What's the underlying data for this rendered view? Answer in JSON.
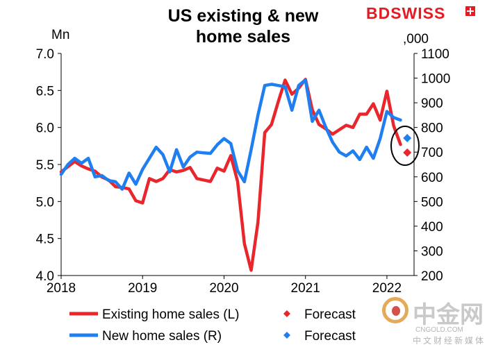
{
  "title_line1": "US existing & new",
  "title_line2": "home sales",
  "brand": {
    "name": "BDSWISS"
  },
  "left_axis_unit": "Mn",
  "right_axis_unit": ",000",
  "watermark": {
    "name": "中金网",
    "url": "CNGOLD.COM",
    "subtitle": "中文财经新媒体"
  },
  "colors": {
    "existing": "#e8262c",
    "new": "#1f7ff0",
    "axis": "#000000"
  },
  "chart_data": {
    "type": "line",
    "x_ticks": [
      "2018",
      "2019",
      "2020",
      "2021",
      "2022"
    ],
    "x_range": [
      "2018-01",
      "2022-05"
    ],
    "left_axis": {
      "label": "Mn",
      "ylim": [
        4.0,
        7.0
      ],
      "ticks": [
        "4.0",
        "4.5",
        "5.0",
        "5.5",
        "6.0",
        "6.5",
        "7.0"
      ]
    },
    "right_axis": {
      "label": ",000",
      "ylim": [
        200,
        1100
      ],
      "ticks": [
        "200",
        "300",
        "400",
        "500",
        "600",
        "700",
        "800",
        "900",
        "1000",
        "1100"
      ]
    },
    "legend": {
      "placement": "bottom"
    },
    "series": [
      {
        "name": "Existing home sales (L)",
        "axis": "left",
        "color": "#e8262c",
        "x": [
          "2018-01",
          "2018-02",
          "2018-03",
          "2018-04",
          "2018-05",
          "2018-06",
          "2018-07",
          "2018-08",
          "2018-09",
          "2018-10",
          "2018-11",
          "2018-12",
          "2019-01",
          "2019-02",
          "2019-03",
          "2019-04",
          "2019-05",
          "2019-06",
          "2019-07",
          "2019-08",
          "2019-09",
          "2019-10",
          "2019-11",
          "2019-12",
          "2020-01",
          "2020-02",
          "2020-03",
          "2020-04",
          "2020-05",
          "2020-06",
          "2020-07",
          "2020-08",
          "2020-09",
          "2020-10",
          "2020-11",
          "2020-12",
          "2021-01",
          "2021-02",
          "2021-03",
          "2021-04",
          "2021-05",
          "2021-06",
          "2021-07",
          "2021-08",
          "2021-09",
          "2021-10",
          "2021-11",
          "2021-12",
          "2022-01",
          "2022-02",
          "2022-03"
        ],
        "y": [
          5.4,
          5.47,
          5.54,
          5.48,
          5.44,
          5.41,
          5.33,
          5.29,
          5.2,
          5.19,
          5.17,
          5.01,
          4.98,
          5.31,
          5.27,
          5.31,
          5.43,
          5.4,
          5.42,
          5.46,
          5.31,
          5.29,
          5.27,
          5.45,
          5.41,
          5.62,
          5.27,
          4.43,
          4.07,
          4.72,
          5.93,
          6.04,
          6.35,
          6.64,
          6.45,
          6.53,
          6.65,
          6.24,
          6.04,
          5.98,
          5.91,
          5.97,
          6.03,
          6.0,
          6.18,
          6.18,
          6.32,
          6.1,
          6.49,
          6.02,
          5.77
        ]
      },
      {
        "name": "New home sales (R)",
        "axis": "right",
        "color": "#1f7ff0",
        "x": [
          "2018-01",
          "2018-02",
          "2018-03",
          "2018-04",
          "2018-05",
          "2018-06",
          "2018-07",
          "2018-08",
          "2018-09",
          "2018-10",
          "2018-11",
          "2018-12",
          "2019-01",
          "2019-02",
          "2019-03",
          "2019-04",
          "2019-05",
          "2019-06",
          "2019-07",
          "2019-08",
          "2019-09",
          "2019-10",
          "2019-11",
          "2019-12",
          "2020-01",
          "2020-02",
          "2020-03",
          "2020-04",
          "2020-05",
          "2020-06",
          "2020-07",
          "2020-08",
          "2020-09",
          "2020-10",
          "2020-11",
          "2020-12",
          "2021-01",
          "2021-02",
          "2021-03",
          "2021-04",
          "2021-05",
          "2021-06",
          "2021-07",
          "2021-08",
          "2021-09",
          "2021-10",
          "2021-11",
          "2021-12",
          "2022-01",
          "2022-02",
          "2022-03"
        ],
        "y": [
          610,
          650,
          675,
          655,
          675,
          600,
          605,
          585,
          580,
          550,
          615,
          570,
          630,
          675,
          720,
          690,
          620,
          710,
          640,
          680,
          700,
          697,
          695,
          730,
          755,
          735,
          625,
          580,
          710,
          850,
          970,
          975,
          970,
          965,
          870,
          970,
          993,
          825,
          870,
          800,
          740,
          700,
          685,
          705,
          670,
          720,
          675,
          755,
          865,
          840,
          830
        ]
      }
    ],
    "forecasts": [
      {
        "name": "Forecast",
        "for_series": "Existing home sales (L)",
        "axis": "left",
        "x": "2022-04",
        "y": 5.66,
        "color": "#e8262c"
      },
      {
        "name": "Forecast",
        "for_series": "New home sales (R)",
        "axis": "right",
        "x": "2022-04",
        "y": 757,
        "color": "#1f7ff0"
      }
    ]
  }
}
